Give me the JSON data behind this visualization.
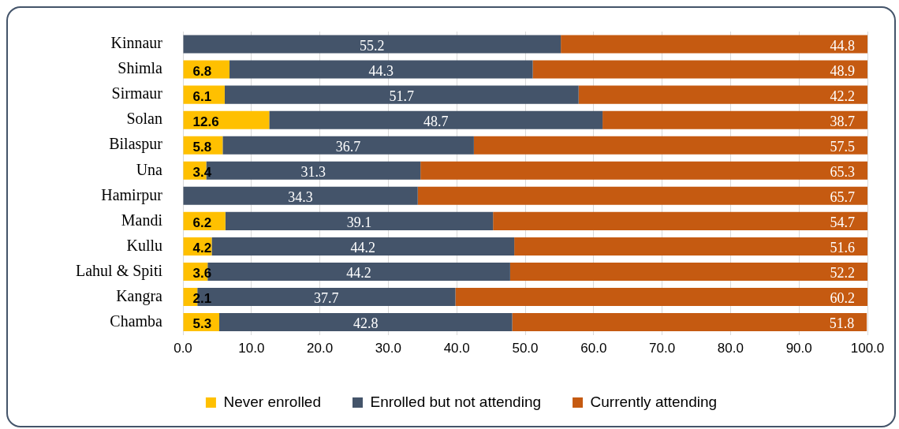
{
  "chart_data": {
    "type": "bar",
    "orientation": "horizontal",
    "stacked": true,
    "grid": "x",
    "legend": "bottom",
    "categories": [
      "Kinnaur",
      "Shimla",
      "Sirmaur",
      "Solan",
      "Bilaspur",
      "Una",
      "Hamirpur",
      "Mandi",
      "Kullu",
      "Lahul & Spiti",
      "Kangra",
      "Chamba"
    ],
    "xlim": [
      0,
      100
    ],
    "xticks": [
      {
        "value": 0,
        "label": "0.0"
      },
      {
        "value": 10,
        "label": "10.0"
      },
      {
        "value": 20,
        "label": "20.0"
      },
      {
        "value": 30,
        "label": "30.0"
      },
      {
        "value": 40,
        "label": "40.0"
      },
      {
        "value": 50,
        "label": "50.0"
      },
      {
        "value": 60,
        "label": "60.0"
      },
      {
        "value": 70,
        "label": "70.0"
      },
      {
        "value": 80,
        "label": "80.0"
      },
      {
        "value": 90,
        "label": "90.0"
      },
      {
        "value": 100,
        "label": "100.0"
      }
    ],
    "series": [
      {
        "name": "Never enrolled",
        "color": "#ffc000",
        "values": [
          0,
          6.8,
          6.1,
          12.6,
          5.8,
          3.4,
          0,
          6.2,
          4.2,
          3.6,
          2.1,
          5.3
        ],
        "value_labels": [
          null,
          "6.8",
          "6.1",
          "12.6",
          "5.8",
          "3.4",
          null,
          "6.2",
          "4.2",
          "3.6",
          "2.1",
          "5.3"
        ]
      },
      {
        "name": "Enrolled but not attending",
        "color": "#44546a",
        "values": [
          55.2,
          44.3,
          51.7,
          48.7,
          36.7,
          31.3,
          34.3,
          39.1,
          44.2,
          44.2,
          37.7,
          42.8
        ],
        "value_labels": [
          "55.2",
          "44.3",
          "51.7",
          "48.7",
          "36.7",
          "31.3",
          "34.3",
          "39.1",
          "44.2",
          "44.2",
          "37.7",
          "42.8"
        ]
      },
      {
        "name": "Currently attending",
        "color": "#c55a11",
        "values": [
          44.8,
          48.9,
          42.2,
          38.7,
          57.5,
          65.3,
          65.7,
          54.7,
          51.6,
          52.2,
          60.2,
          51.8
        ],
        "value_labels": [
          "44.8",
          "48.9",
          "42.2",
          "38.7",
          "57.5",
          "65.3",
          "65.7",
          "54.7",
          "51.6",
          "52.2",
          "60.2",
          "51.8"
        ]
      }
    ]
  }
}
